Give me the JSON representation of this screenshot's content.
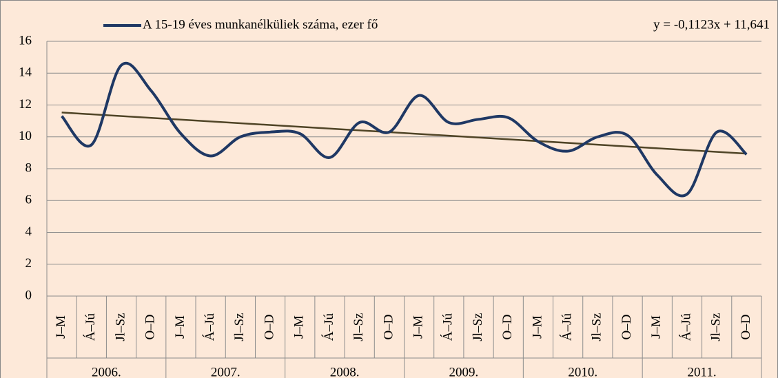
{
  "chart_data": {
    "type": "line",
    "categories": [
      "J–M",
      "Á–Jú",
      "Jl–Sz",
      "O–D",
      "J–M",
      "Á–Jú",
      "Jl–Sz",
      "O–D",
      "J–M",
      "Á–Jú",
      "Jl–Sz",
      "O–D",
      "J–M",
      "Á–Jú",
      "Jl–Sz",
      "O–D",
      "J–M",
      "Á–Jú",
      "Jl–Sz",
      "O–D",
      "J–M",
      "Á–Jú",
      "Jl–Sz",
      "O–D"
    ],
    "groups": [
      "2006.",
      "2007.",
      "2008.",
      "2009.",
      "2010.",
      "2011."
    ],
    "series": [
      {
        "name": "A 15-19 éves munkanélküliek száma, ezer fő",
        "color": "#1f3864",
        "values": [
          11.3,
          9.5,
          14.5,
          12.9,
          10.2,
          8.8,
          10.0,
          10.3,
          10.2,
          8.7,
          10.9,
          10.3,
          12.6,
          10.9,
          11.1,
          11.2,
          9.7,
          9.1,
          10.0,
          10.1,
          7.6,
          6.4,
          10.3,
          8.9
        ]
      }
    ],
    "trendline": {
      "label": "y = -0,1123x + 11,641",
      "slope": -0.1123,
      "intercept": 11.641,
      "color": "#4f4426"
    },
    "ylim": [
      0,
      16
    ],
    "yticks": [
      0,
      2,
      4,
      6,
      8,
      10,
      12,
      14,
      16
    ],
    "grid": true,
    "smooth": true
  }
}
